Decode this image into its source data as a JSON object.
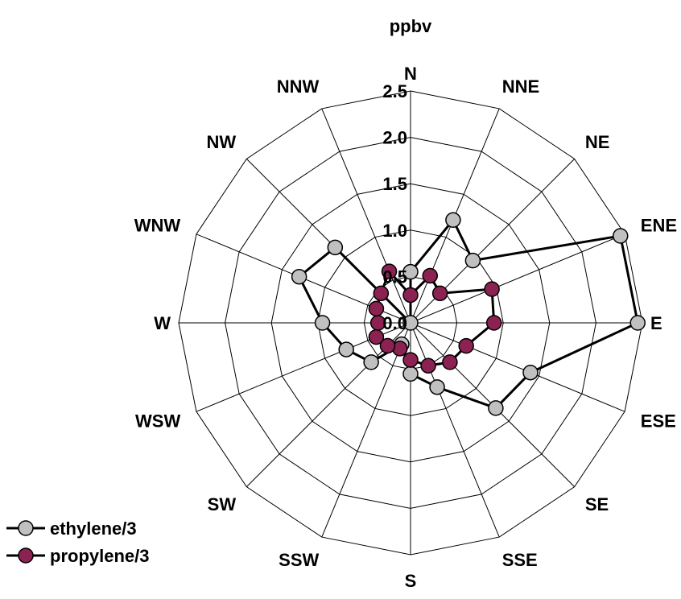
{
  "chart_data": {
    "type": "radar",
    "unit_label": "ppbv",
    "directions": [
      "N",
      "NNE",
      "NE",
      "ENE",
      "E",
      "ESE",
      "SE",
      "SSE",
      "S",
      "SSW",
      "SW",
      "WSW",
      "W",
      "WNW",
      "NW",
      "NNW"
    ],
    "rlim": [
      0,
      2.5
    ],
    "ticks": [
      "0.0",
      "0.5",
      "1.0",
      "1.5",
      "2.0",
      "2.5"
    ],
    "tick_values": [
      0,
      0.5,
      1.0,
      1.5,
      2.0,
      2.5
    ],
    "grid": true,
    "legend_position": "bottom-left",
    "series": [
      {
        "name": "ethylene/3",
        "color": "#c0c0c0",
        "values": [
          0.55,
          1.2,
          0.95,
          2.45,
          2.45,
          1.4,
          1.3,
          0.75,
          0.55,
          0.25,
          0.6,
          0.75,
          0.95,
          1.3,
          1.15,
          0.0
        ]
      },
      {
        "name": "propylene/3",
        "color": "#8b2252",
        "values": [
          0.3,
          0.55,
          0.45,
          0.95,
          0.9,
          0.65,
          0.6,
          0.5,
          0.4,
          0.3,
          0.35,
          0.4,
          0.35,
          0.4,
          0.45,
          0.6
        ]
      }
    ]
  }
}
